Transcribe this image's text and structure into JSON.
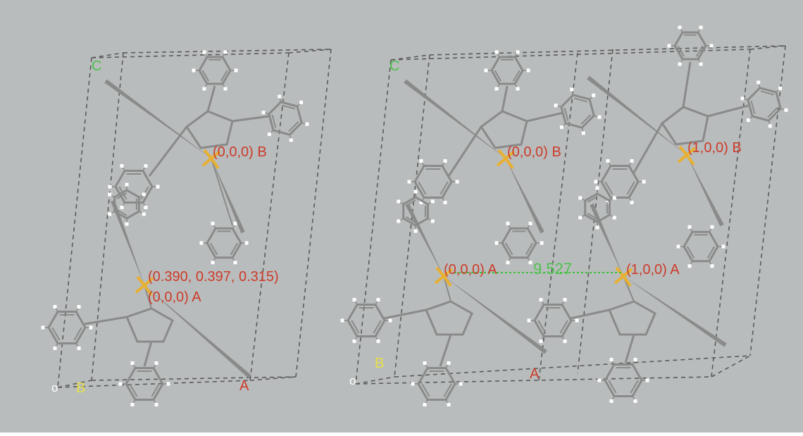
{
  "background_color": "#b9bcbc",
  "colors": {
    "cell_edge": "#5b5b5b",
    "bond": "#8a8a8a",
    "hydrogen": "#ffffff",
    "label_red": "#cc3b2a",
    "label_green": "#4ec24e",
    "label_yellow": "#e6e04a",
    "label_white": "#ffffff",
    "contact_green": "#39c13a",
    "metal": "#e8b030"
  },
  "left_panel": {
    "axis_c": "C",
    "axis_b": "B",
    "axis_a": "A",
    "origin": "o",
    "atom_label_b": "(0,0,0) B",
    "atom_label_coords": "(0.390, 0.397, 0.315)",
    "atom_label_a": "(0,0,0) A"
  },
  "right_panel": {
    "axis_c": "C",
    "axis_b": "B",
    "axis_a": "A",
    "origin": "o",
    "atom_label_b0": "(0,0,0) B",
    "atom_label_b1": "(1,0,0) B",
    "atom_label_a0": "(0,0,0) A",
    "atom_label_a1": "(1,0,0) A",
    "distance": "9.527"
  }
}
